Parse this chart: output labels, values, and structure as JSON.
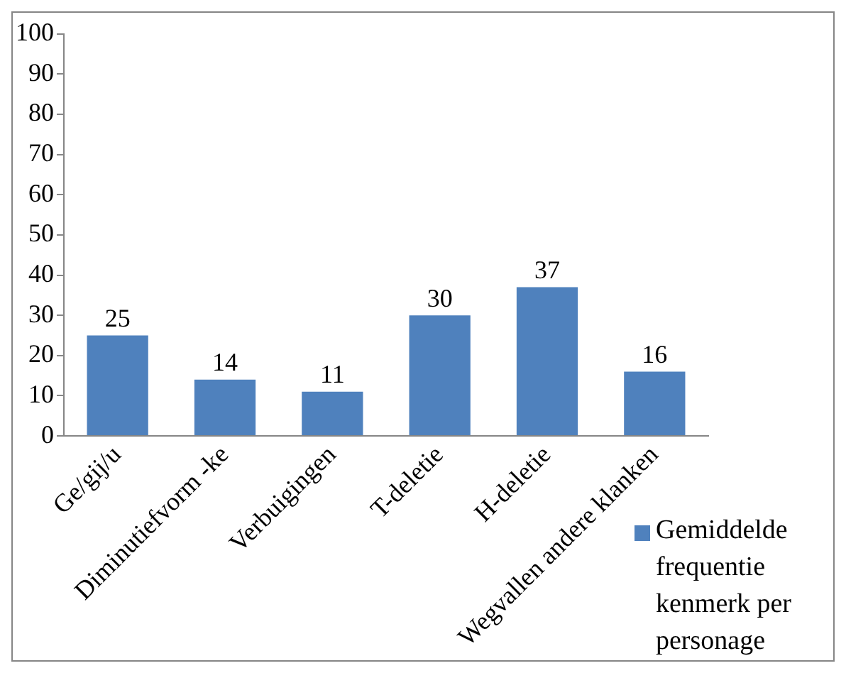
{
  "chart_data": {
    "type": "bar",
    "categories": [
      "Ge/gij/u",
      "Diminutiefvorm -ke",
      "Verbuigingen",
      "T-deletie",
      "H-deletie",
      "Wegvallen andere klanken"
    ],
    "series": [
      {
        "name": "Gemiddelde frequentie kenmerk per personage",
        "color": "#4f81bd",
        "values": [
          25,
          14,
          11,
          30,
          37,
          16
        ]
      }
    ],
    "ylim": [
      0,
      100
    ],
    "yticks": [
      0,
      10,
      20,
      30,
      40,
      50,
      60,
      70,
      80,
      90,
      100
    ],
    "grid": false,
    "legend": "bottom right",
    "data_labels": true
  }
}
